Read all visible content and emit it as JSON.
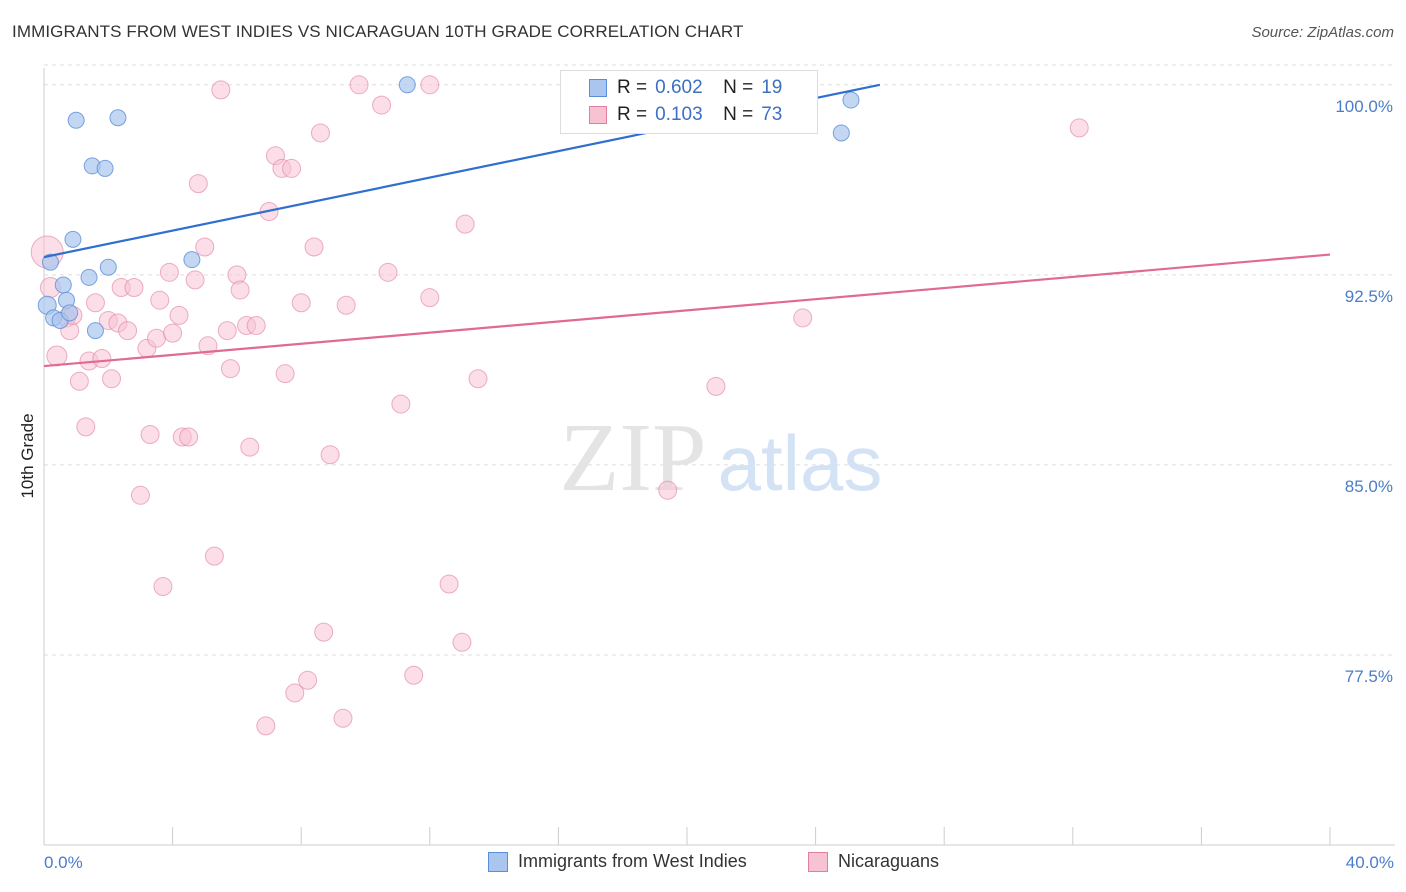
{
  "header": {
    "title": "IMMIGRANTS FROM WEST INDIES VS NICARAGUAN 10TH GRADE CORRELATION CHART",
    "source": "Source: ZipAtlas.com"
  },
  "legend_top": {
    "rows": [
      {
        "r_label": "R =",
        "r_value": "0.602",
        "n_label": "N =",
        "n_value": "19"
      },
      {
        "r_label": "R =",
        "r_value": "0.103",
        "n_label": "N =",
        "n_value": "73"
      }
    ]
  },
  "watermark": {
    "zip": "ZIP",
    "atlas": "atlas"
  },
  "colors": {
    "blue_fill": "#aac6ee",
    "blue_stroke": "#5b8ed8",
    "blue_line": "#2f6fd0",
    "pink_fill": "#f7c3d3",
    "pink_stroke": "#e07fa0",
    "pink_line": "#e06a93",
    "tick_text": "#4a7dc9",
    "grid": "#dddddd"
  },
  "chart_data": {
    "type": "scatter",
    "title": "IMMIGRANTS FROM WEST INDIES VS NICARAGUAN 10TH GRADE CORRELATION CHART",
    "xlabel": "",
    "ylabel": "10th Grade",
    "xlim": [
      0,
      40
    ],
    "ylim": [
      70.0,
      100.9
    ],
    "x_tick_labels": [
      "0.0%",
      "40.0%"
    ],
    "y_ticks": [
      77.5,
      85.0,
      92.5,
      100.0
    ],
    "y_tick_labels": [
      "77.5%",
      "85.0%",
      "92.5%",
      "100.0%"
    ],
    "grid": true,
    "legend_position": "bottom",
    "series": [
      {
        "name": "Immigrants from West Indies",
        "color": "#aac6ee",
        "points": [
          [
            0.1,
            91.3,
            9
          ],
          [
            0.2,
            93.0,
            8
          ],
          [
            0.3,
            90.8,
            8
          ],
          [
            0.5,
            90.7,
            8
          ],
          [
            0.6,
            92.1,
            8
          ],
          [
            0.7,
            91.5,
            8
          ],
          [
            0.8,
            91.0,
            8
          ],
          [
            0.9,
            93.9,
            8
          ],
          [
            1.0,
            98.6,
            8
          ],
          [
            1.4,
            92.4,
            8
          ],
          [
            1.5,
            96.8,
            8
          ],
          [
            1.6,
            90.3,
            8
          ],
          [
            1.9,
            96.7,
            8
          ],
          [
            2.0,
            92.8,
            8
          ],
          [
            2.3,
            98.7,
            8
          ],
          [
            4.6,
            93.1,
            8
          ],
          [
            11.3,
            100.0,
            8
          ],
          [
            24.8,
            98.1,
            8
          ],
          [
            25.1,
            99.4,
            8
          ]
        ],
        "trend": {
          "x": [
            0,
            26.0
          ],
          "y": [
            93.2,
            100.0
          ]
        }
      },
      {
        "name": "Nicaraguans",
        "color": "#f7c3d3",
        "points": [
          [
            0.1,
            93.4,
            16
          ],
          [
            0.2,
            92.0,
            10
          ],
          [
            0.4,
            89.3,
            10
          ],
          [
            0.7,
            90.8,
            9
          ],
          [
            0.8,
            90.3,
            9
          ],
          [
            0.9,
            90.9,
            9
          ],
          [
            1.1,
            88.3,
            9
          ],
          [
            1.3,
            86.5,
            9
          ],
          [
            1.4,
            89.1,
            9
          ],
          [
            1.6,
            91.4,
            9
          ],
          [
            1.8,
            89.2,
            9
          ],
          [
            2.0,
            90.7,
            9
          ],
          [
            2.1,
            88.4,
            9
          ],
          [
            2.3,
            90.6,
            9
          ],
          [
            2.4,
            92.0,
            9
          ],
          [
            2.6,
            90.3,
            9
          ],
          [
            2.8,
            92.0,
            9
          ],
          [
            3.0,
            83.8,
            9
          ],
          [
            3.2,
            89.6,
            9
          ],
          [
            3.3,
            86.2,
            9
          ],
          [
            3.5,
            90.0,
            9
          ],
          [
            3.6,
            91.5,
            9
          ],
          [
            3.7,
            80.2,
            9
          ],
          [
            3.9,
            92.6,
            9
          ],
          [
            4.0,
            90.2,
            9
          ],
          [
            4.2,
            90.9,
            9
          ],
          [
            4.3,
            86.1,
            9
          ],
          [
            4.5,
            86.1,
            9
          ],
          [
            4.7,
            92.3,
            9
          ],
          [
            4.8,
            96.1,
            9
          ],
          [
            5.0,
            93.6,
            9
          ],
          [
            5.1,
            89.7,
            9
          ],
          [
            5.3,
            81.4,
            9
          ],
          [
            5.5,
            99.8,
            9
          ],
          [
            5.7,
            90.3,
            9
          ],
          [
            5.8,
            88.8,
            9
          ],
          [
            6.0,
            92.5,
            9
          ],
          [
            6.1,
            91.9,
            9
          ],
          [
            6.3,
            90.5,
            9
          ],
          [
            6.4,
            85.7,
            9
          ],
          [
            6.6,
            90.5,
            9
          ],
          [
            6.9,
            74.7,
            9
          ],
          [
            7.0,
            95.0,
            9
          ],
          [
            7.2,
            97.2,
            9
          ],
          [
            7.4,
            96.7,
            9
          ],
          [
            7.5,
            88.6,
            9
          ],
          [
            7.7,
            96.7,
            9
          ],
          [
            7.8,
            76.0,
            9
          ],
          [
            8.0,
            91.4,
            9
          ],
          [
            8.2,
            76.5,
            9
          ],
          [
            8.4,
            93.6,
            9
          ],
          [
            8.6,
            98.1,
            9
          ],
          [
            8.7,
            78.4,
            9
          ],
          [
            8.9,
            85.4,
            9
          ],
          [
            9.3,
            75.0,
            9
          ],
          [
            9.4,
            91.3,
            9
          ],
          [
            9.8,
            100.0,
            9
          ],
          [
            10.5,
            99.2,
            9
          ],
          [
            10.7,
            92.6,
            9
          ],
          [
            11.1,
            87.4,
            9
          ],
          [
            11.5,
            76.7,
            9
          ],
          [
            12.0,
            91.6,
            9
          ],
          [
            12.0,
            100.0,
            9
          ],
          [
            12.6,
            80.3,
            9
          ],
          [
            13.0,
            78.0,
            9
          ],
          [
            13.1,
            94.5,
            9
          ],
          [
            13.5,
            88.4,
            9
          ],
          [
            16.6,
            100.0,
            9
          ],
          [
            19.4,
            84.0,
            9
          ],
          [
            20.9,
            88.1,
            9
          ],
          [
            22.2,
            100.0,
            9
          ],
          [
            23.6,
            90.8,
            9
          ],
          [
            32.2,
            98.3,
            9
          ]
        ],
        "trend": {
          "x": [
            0,
            40
          ],
          "y": [
            88.9,
            93.3
          ]
        }
      }
    ]
  }
}
